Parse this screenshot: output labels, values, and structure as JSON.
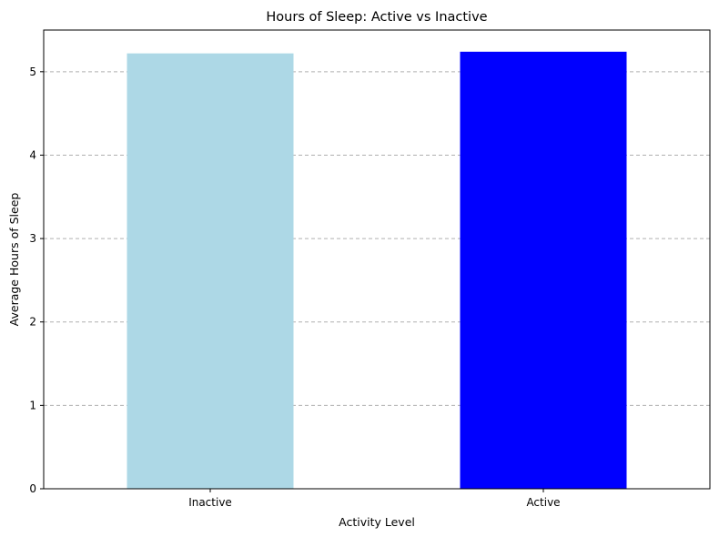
{
  "chart_data": {
    "type": "bar",
    "title": "Hours of Sleep: Active vs Inactive",
    "xlabel": "Activity Level",
    "ylabel": "Average Hours of Sleep",
    "categories": [
      "Inactive",
      "Active"
    ],
    "values": [
      5.22,
      5.24
    ],
    "colors": [
      "#add8e6",
      "#0000ff"
    ],
    "ylim": [
      0,
      5.5
    ],
    "yticks": [
      0,
      1,
      2,
      3,
      4,
      5
    ],
    "grid": "y-dashed",
    "legend": "none"
  }
}
